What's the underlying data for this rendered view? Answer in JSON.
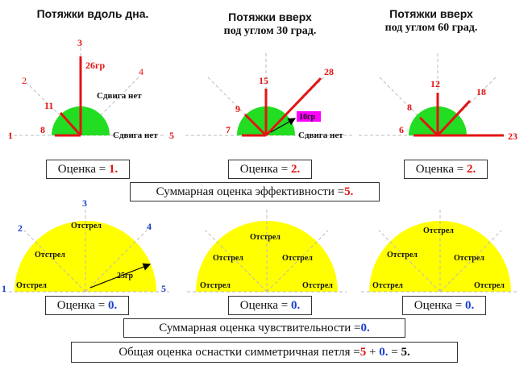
{
  "titles": {
    "t1": "Потяжки вдоль дна.",
    "t2_line1": "Потяжки вверх",
    "t2_line2": "под углом 30 град.",
    "t3_line1": "Потяжки вверх",
    "t3_line2": "под углом 60 град."
  },
  "top_diagrams": {
    "d1": {
      "direction_labels": {
        "n1": "1",
        "n2": "2",
        "n3": "3",
        "n4": "4",
        "n5": "5"
      },
      "values": {
        "v8": "8",
        "v11": "11",
        "v26": "26гр"
      },
      "notes": {
        "no_shift_1": "Сдвига нет",
        "no_shift_2": "Сдвига нет"
      }
    },
    "d2": {
      "values": {
        "v7": "7",
        "v9": "9",
        "v15": "15",
        "v28": "28",
        "v10": "10гр"
      },
      "notes": {
        "no_shift": "Сдвига нет"
      }
    },
    "d3": {
      "values": {
        "v6": "6",
        "v8": "8",
        "v12": "12",
        "v18": "18",
        "v23": "23"
      }
    }
  },
  "scores_top": {
    "s1_label": "Оценка = ",
    "s1_value": "1.",
    "s2_label": "Оценка = ",
    "s2_value": "2.",
    "s3_label": "Оценка = ",
    "s3_value": "2."
  },
  "efficiency_summary": {
    "label": "Суммарная оценка эффективности = ",
    "value": "5."
  },
  "bottom_diagrams": {
    "direction_labels": {
      "n1": "1",
      "n2": "2",
      "n3": "3",
      "n4": "4",
      "n5": "5"
    },
    "overshoot": "Отстрел",
    "angle_note": "25гр"
  },
  "scores_bottom": {
    "s1_label": "Оценка = ",
    "s1_value": "0.",
    "s2_label": "Оценка = ",
    "s2_value": "0.",
    "s3_label": "Оценка = ",
    "s3_value": "0."
  },
  "sensitivity_summary": {
    "label": "Суммарная оценка чувствительности = ",
    "value": "0."
  },
  "overall": {
    "label": "Общая оценка оснастки симметричная петля = ",
    "a": "5",
    "plus": " + ",
    "b": "0.",
    "eq": " = ",
    "result": "5."
  },
  "colors": {
    "green": "#22dd22",
    "yellow": "#ffff00",
    "red_line": "#e31414",
    "blue_text": "#1a3fcf",
    "dashed": "#bbbbbb",
    "magenta": "#ff00ff"
  }
}
